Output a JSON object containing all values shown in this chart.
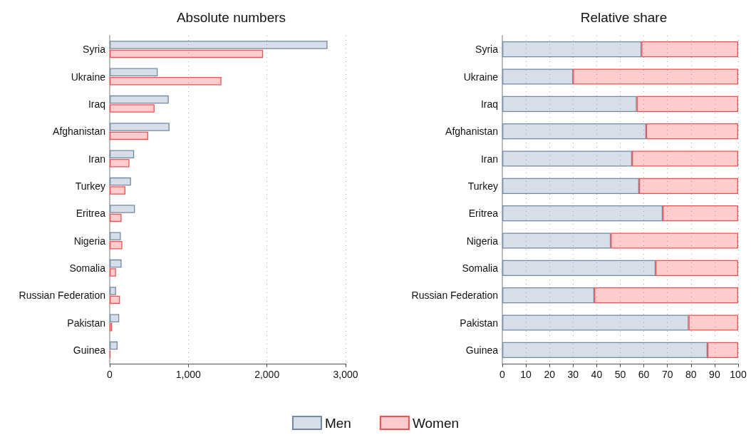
{
  "chart_data": [
    {
      "type": "bar",
      "title": "Absolute numbers",
      "orientation": "horizontal",
      "categories": [
        "Syria",
        "Ukraine",
        "Iraq",
        "Afghanistan",
        "Iran",
        "Turkey",
        "Eritrea",
        "Nigeria",
        "Somalia",
        "Russian Federation",
        "Pakistan",
        "Guinea"
      ],
      "series": [
        {
          "name": "Men",
          "color": "#6e8aa8",
          "values": [
            2770,
            610,
            750,
            760,
            310,
            270,
            320,
            140,
            150,
            80,
            120,
            100
          ]
        },
        {
          "name": "Women",
          "color": "#ff4d4d",
          "values": [
            1950,
            1420,
            570,
            490,
            250,
            200,
            150,
            160,
            80,
            130,
            30,
            10
          ]
        }
      ],
      "xlim": [
        0,
        3000
      ],
      "xticks": [
        0,
        {
          "value": 1000,
          "label": "1,000"
        },
        {
          "value": 2000,
          "label": "2,000"
        },
        {
          "value": 3000,
          "label": "3,000"
        }
      ],
      "grid": "x",
      "legend": "bottom"
    },
    {
      "type": "bar",
      "title": "Relative share",
      "orientation": "horizontal",
      "stacked": true,
      "categories": [
        "Syria",
        "Ukraine",
        "Iraq",
        "Afghanistan",
        "Iran",
        "Turkey",
        "Eritrea",
        "Nigeria",
        "Somalia",
        "Russian Federation",
        "Pakistan",
        "Guinea"
      ],
      "series": [
        {
          "name": "Men",
          "color": "#6e8aa8",
          "values": [
            59,
            30,
            57,
            61,
            55,
            58,
            68,
            46,
            65,
            39,
            79,
            87
          ]
        },
        {
          "name": "Women",
          "color": "#ff4d4d",
          "values": [
            41,
            70,
            43,
            39,
            45,
            42,
            32,
            54,
            35,
            61,
            21,
            13
          ]
        }
      ],
      "xlim": [
        0,
        100
      ],
      "xticks": [
        0,
        10,
        20,
        30,
        40,
        50,
        60,
        70,
        80,
        90,
        100
      ],
      "grid": "x",
      "legend": "bottom"
    }
  ]
}
